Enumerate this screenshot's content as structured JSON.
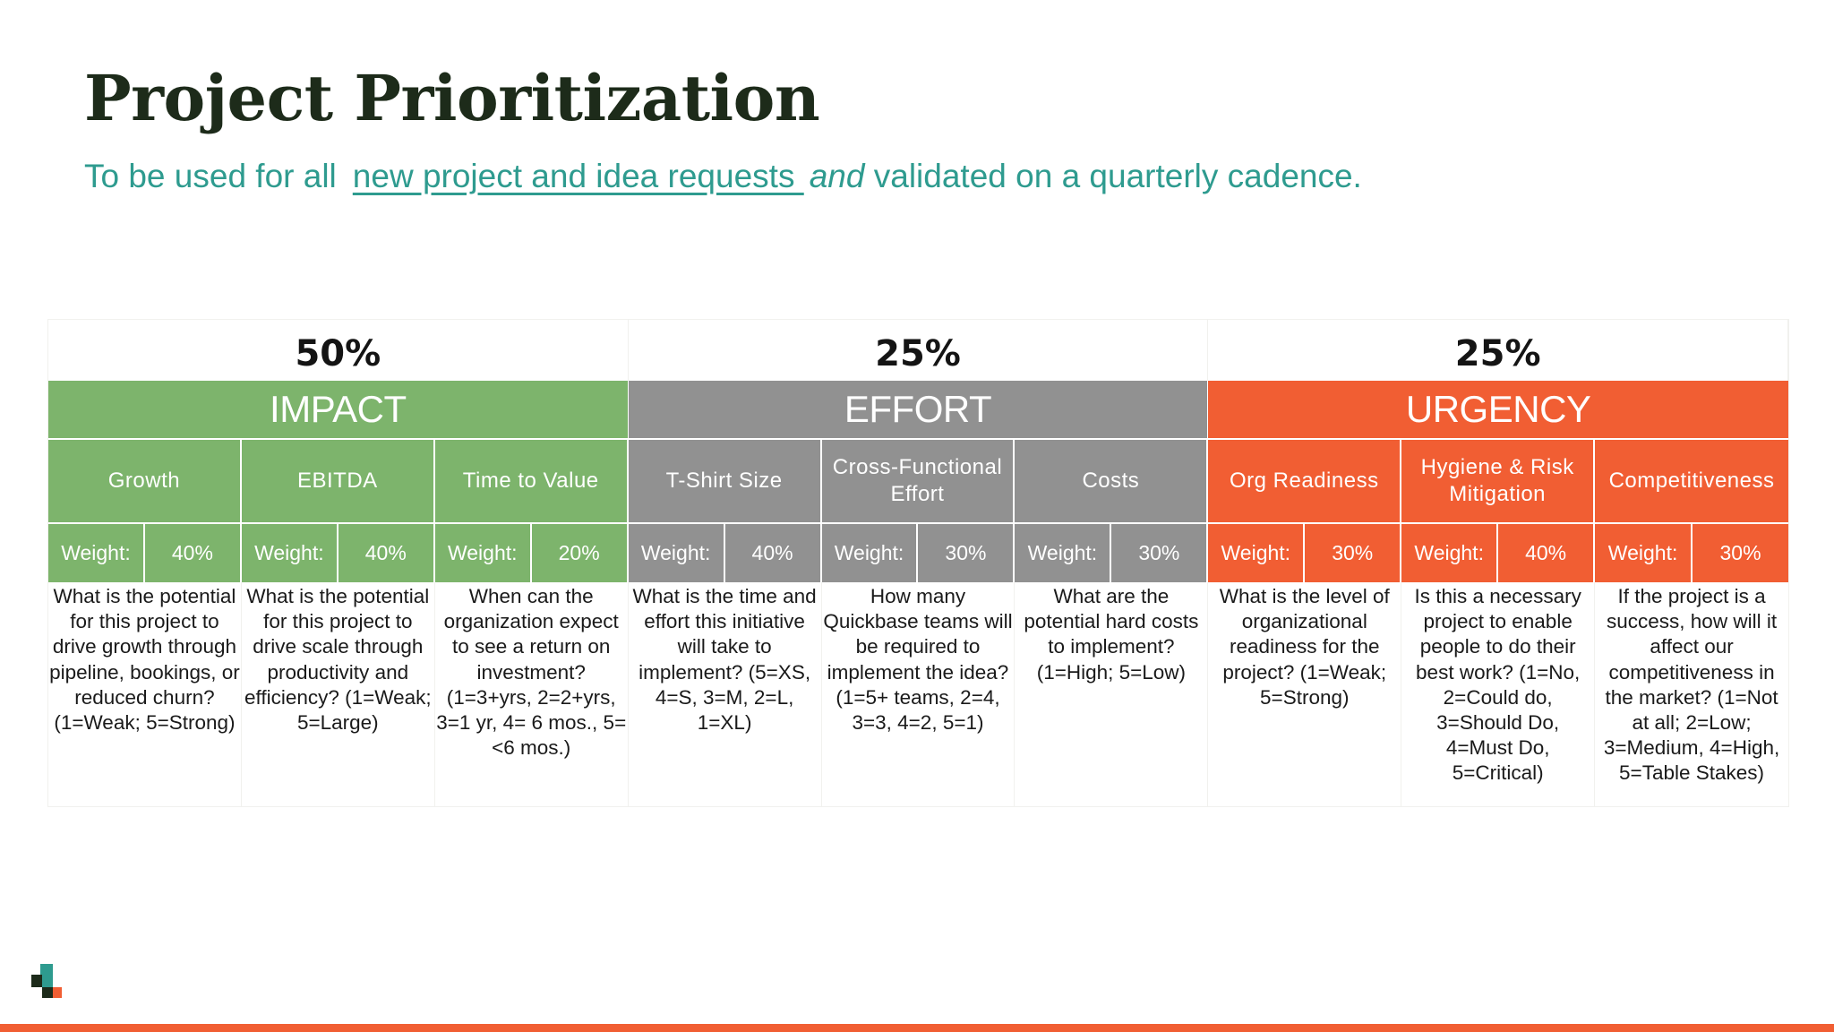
{
  "title": "Project Prioritization",
  "subtitle": {
    "prefix": "To be used for all",
    "link": "new project and idea requests ",
    "emphasis": "and",
    "suffix": " validated on a quarterly cadence."
  },
  "categories": [
    {
      "percent": "50%",
      "name": "IMPACT",
      "color": "#7db46c"
    },
    {
      "percent": "25%",
      "name": "EFFORT",
      "color": "#919191"
    },
    {
      "percent": "25%",
      "name": "URGENCY",
      "color": "#f15e33"
    }
  ],
  "weight_label": "Weight:",
  "criteria": [
    {
      "name": "Growth",
      "weight": "40%",
      "description": "What is the potential for this project to drive growth through pipeline, bookings, or reduced churn? (1=Weak; 5=Strong)"
    },
    {
      "name": "EBITDA",
      "weight": "40%",
      "description": "What is the potential for this project to drive scale through productivity and efficiency? (1=Weak; 5=Large)"
    },
    {
      "name": "Time to Value",
      "weight": "20%",
      "description": "When can the organization expect to see a return on investment? (1=3+yrs, 2=2+yrs, 3=1 yr, 4= 6 mos., 5=<6 mos.)"
    },
    {
      "name": "T-Shirt Size",
      "weight": "40%",
      "description": "What is the time and effort this initiative will take to implement? (5=XS, 4=S, 3=M, 2=L, 1=XL)"
    },
    {
      "name": "Cross-Functional Effort",
      "weight": "30%",
      "description": "How many Quickbase teams will be required to implement the idea? (1=5+ teams, 2=4, 3=3, 4=2, 5=1)"
    },
    {
      "name": "Costs",
      "weight": "30%",
      "description": "What are the potential hard costs to implement? (1=High; 5=Low)"
    },
    {
      "name": "Org Readiness",
      "weight": "30%",
      "description": "What is the level of organizational readiness for the project? (1=Weak; 5=Strong)"
    },
    {
      "name": "Hygiene & Risk Mitigation",
      "weight": "40%",
      "description": "Is this a necessary project to enable people to do their best work? (1=No, 2=Could do, 3=Should Do, 4=Must Do, 5=Critical)"
    },
    {
      "name": "Competitiveness",
      "weight": "30%",
      "description": "If the project is a success, how will it affect our competitiveness in the market? (1=Not at all; 2=Low; 3=Medium, 4=High, 5=Table Stakes)"
    }
  ]
}
